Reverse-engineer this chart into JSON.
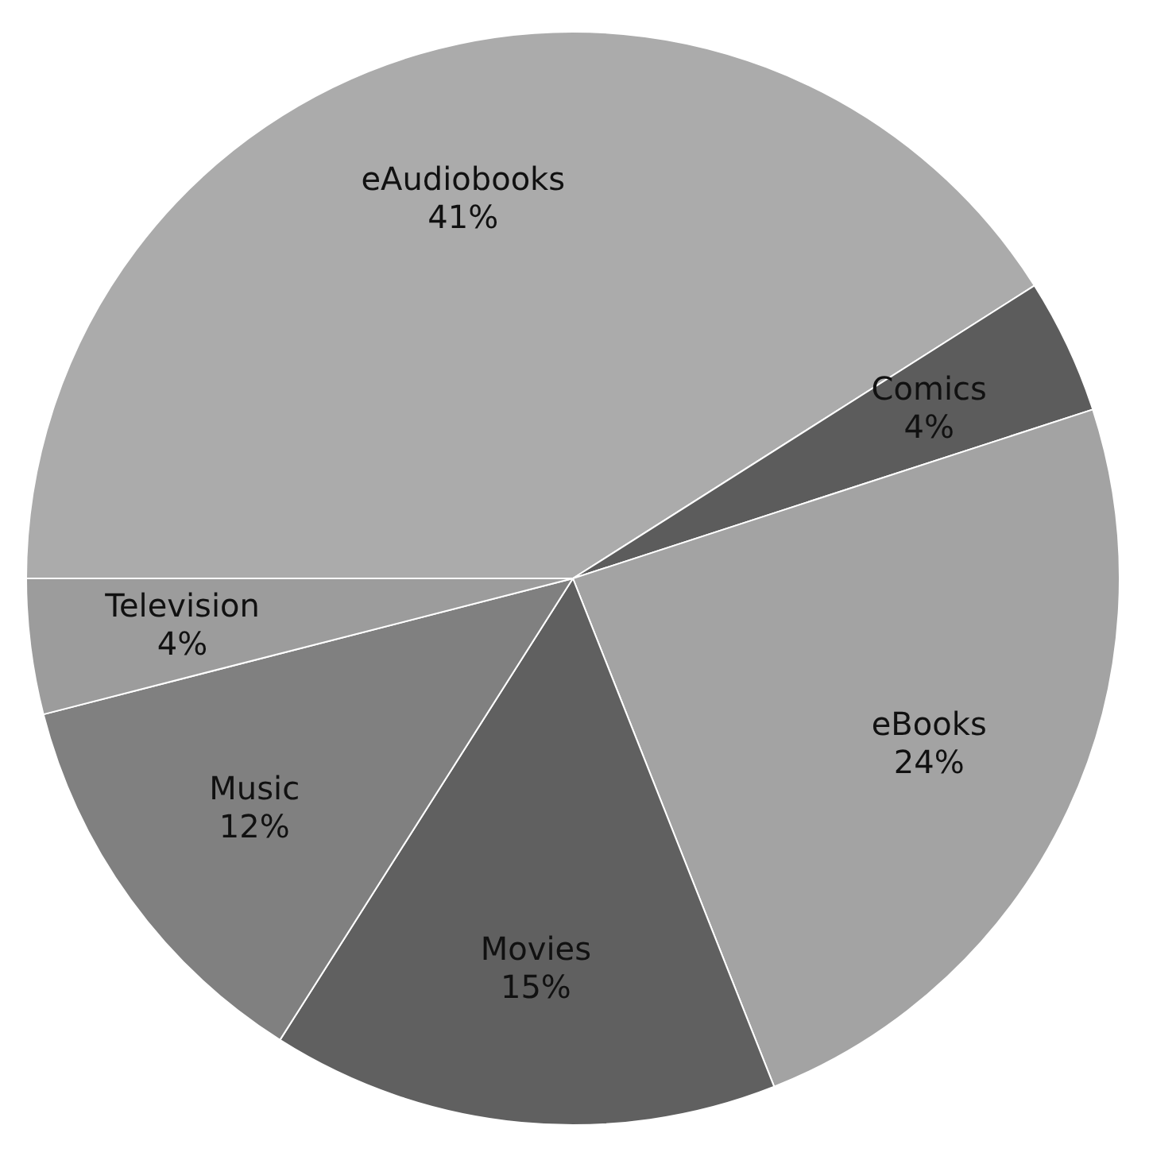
{
  "chart_data": {
    "type": "pie",
    "categories": [
      "eAudiobooks",
      "Comics",
      "eBooks",
      "Movies",
      "Music",
      "Television"
    ],
    "values": [
      41,
      4,
      24,
      15,
      12,
      4
    ],
    "colors": [
      "#ababab",
      "#5c5c5c",
      "#a3a3a3",
      "#606060",
      "#808080",
      "#9c9c9c"
    ],
    "value_labels": [
      "41%",
      "4%",
      "24%",
      "15%",
      "12%",
      "4%"
    ]
  }
}
